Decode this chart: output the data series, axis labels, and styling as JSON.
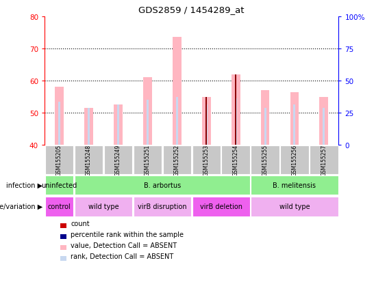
{
  "title": "GDS2859 / 1454289_at",
  "samples": [
    "GSM155205",
    "GSM155248",
    "GSM155249",
    "GSM155251",
    "GSM155252",
    "GSM155253",
    "GSM155254",
    "GSM155255",
    "GSM155256",
    "GSM155257"
  ],
  "ylim": [
    40,
    80
  ],
  "yticks_left": [
    40,
    50,
    60,
    70,
    80
  ],
  "y2lim": [
    0,
    100
  ],
  "y2ticks": [
    0,
    25,
    50,
    75,
    100
  ],
  "pink_bar_tops": [
    58.0,
    51.5,
    52.5,
    61.0,
    73.5,
    55.0,
    62.0,
    57.0,
    56.5,
    55.0
  ],
  "blue_bar_tops": [
    53.5,
    51.5,
    52.5,
    54.0,
    55.0,
    52.5,
    54.5,
    51.5,
    52.5,
    51.5
  ],
  "red_bar_tops": [
    40.0,
    40.0,
    40.0,
    40.0,
    40.0,
    55.0,
    62.0,
    40.0,
    40.0,
    40.0
  ],
  "dark_red_bars": [
    false,
    false,
    false,
    false,
    false,
    true,
    true,
    false,
    false,
    false
  ],
  "color_pink": "#FFB6C1",
  "color_lightblue": "#C8D8F0",
  "color_darkred": "#8B0000",
  "color_blue": "#00008B",
  "color_red": "#CC0000",
  "infection_bounds": [
    [
      0,
      1,
      "uninfected"
    ],
    [
      1,
      7,
      "B. arbortus"
    ],
    [
      7,
      10,
      "B. melitensis"
    ]
  ],
  "genotype_bounds": [
    [
      0,
      1,
      "control",
      "#EE60EE"
    ],
    [
      1,
      3,
      "wild type",
      "#F0B0F0"
    ],
    [
      3,
      5,
      "virB disruption",
      "#F0B0F0"
    ],
    [
      5,
      7,
      "virB deletion",
      "#EE60EE"
    ],
    [
      7,
      10,
      "wild type",
      "#F0B0F0"
    ]
  ],
  "infection_color": "#90EE90",
  "legend_labels": [
    "count",
    "percentile rank within the sample",
    "value, Detection Call = ABSENT",
    "rank, Detection Call = ABSENT"
  ],
  "legend_colors": [
    "#CC0000",
    "#00008B",
    "#FFB6C1",
    "#C8D8F0"
  ]
}
